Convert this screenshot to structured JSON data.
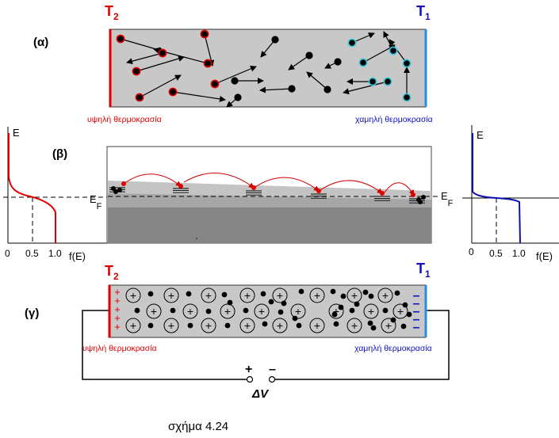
{
  "panel_a": {
    "label": "(α)",
    "t_hot": "T",
    "t_hot_sub": "2",
    "t_cold": "T",
    "t_cold_sub": "1",
    "hot_caption": "υψηλή θερμοκρασία",
    "cold_caption": "χαμηλή θερμοκρασία"
  },
  "panel_b": {
    "label": "(β)",
    "left_graph": {
      "y_axis": "E",
      "fermi": "E",
      "fermi_sub": "F",
      "ticks": [
        "0",
        "0.5",
        "1.0"
      ],
      "x_axis": "f(E)"
    },
    "right_graph": {
      "y_axis": "E",
      "fermi": "E",
      "fermi_sub": "F",
      "ticks": [
        "0",
        "0.5",
        "1.0"
      ],
      "x_axis": "f(E)"
    }
  },
  "panel_c": {
    "label": "(γ)",
    "t_hot": "T",
    "t_hot_sub": "2",
    "t_cold": "T",
    "t_cold_sub": "1",
    "hot_caption": "υψηλή θερμοκρασία",
    "cold_caption": "χαμηλή θερμοκρασία",
    "plus_sign": "+",
    "minus_sign": "–",
    "voltage": "ΔV",
    "ion_symbol": "+",
    "hot_charge": "+",
    "cold_charge": "–"
  },
  "caption": "σχήμα 4.24",
  "colors": {
    "hot": "#e00000",
    "cold": "#2a6fd6",
    "cold_text": "#1010c0",
    "bar": "#c8c8c8",
    "cyan": "#36c8d8"
  }
}
